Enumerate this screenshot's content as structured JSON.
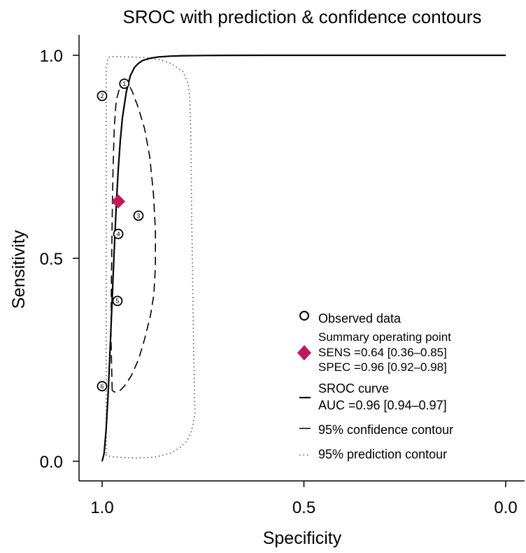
{
  "chart_data": {
    "type": "scatter",
    "title": "SROC with prediction & confidence contours",
    "xlabel": "Specificity",
    "ylabel": "Sensitivity",
    "x_reversed": true,
    "xlim": [
      1.05,
      0.0
    ],
    "ylim": [
      -0.045,
      1.05
    ],
    "xticks": [
      {
        "value": 1.0,
        "label": "1.0"
      },
      {
        "value": 0.5,
        "label": "0.5"
      },
      {
        "value": 0.0,
        "label": "0.0"
      }
    ],
    "yticks": [
      {
        "value": 0.0,
        "label": "0.0"
      },
      {
        "value": 0.5,
        "label": "0.5"
      },
      {
        "value": 1.0,
        "label": "1.0"
      }
    ],
    "grid": false,
    "legend_position": "bottom-right",
    "observed": [
      {
        "label": "1",
        "specificity": 0.945,
        "sensitivity": 0.93
      },
      {
        "label": "2",
        "specificity": 1.0,
        "sensitivity": 0.9
      },
      {
        "label": "3",
        "specificity": 0.91,
        "sensitivity": 0.605
      },
      {
        "label": "4",
        "specificity": 0.96,
        "sensitivity": 0.56
      },
      {
        "label": "5",
        "specificity": 0.962,
        "sensitivity": 0.395
      },
      {
        "label": "6",
        "specificity": 1.0,
        "sensitivity": 0.185
      }
    ],
    "summary_point": {
      "specificity": 0.96,
      "sensitivity": 0.64,
      "color": "#c2185b"
    },
    "sroc_curve": {
      "specificity": [
        1.0,
        0.995,
        0.99,
        0.985,
        0.98,
        0.975,
        0.97,
        0.965,
        0.96,
        0.955,
        0.95,
        0.94,
        0.93,
        0.92,
        0.91,
        0.9,
        0.88,
        0.86,
        0.83,
        0.8,
        0.75,
        0.7,
        0.6,
        0.5,
        0.4,
        0.3,
        0.2,
        0.1,
        0.0
      ],
      "sensitivity": [
        0.0,
        0.02,
        0.08,
        0.17,
        0.28,
        0.4,
        0.52,
        0.63,
        0.72,
        0.79,
        0.845,
        0.91,
        0.95,
        0.97,
        0.98,
        0.987,
        0.993,
        0.996,
        0.998,
        0.999,
        0.9995,
        0.9998,
        1.0,
        1.0,
        1.0,
        1.0,
        1.0,
        1.0,
        1.0
      ]
    },
    "confidence_contour": {
      "specificity": [
        0.975,
        0.978,
        0.977,
        0.975,
        0.973,
        0.97,
        0.965,
        0.955,
        0.945,
        0.935,
        0.925,
        0.91,
        0.895,
        0.882,
        0.873,
        0.868,
        0.868,
        0.872,
        0.88,
        0.895,
        0.91,
        0.928,
        0.945,
        0.958,
        0.967,
        0.972,
        0.975
      ],
      "sensitivity": [
        0.175,
        0.3,
        0.45,
        0.6,
        0.72,
        0.82,
        0.89,
        0.925,
        0.935,
        0.93,
        0.91,
        0.87,
        0.82,
        0.75,
        0.66,
        0.57,
        0.48,
        0.41,
        0.36,
        0.3,
        0.25,
        0.21,
        0.185,
        0.172,
        0.17,
        0.172,
        0.175
      ]
    },
    "prediction_contour": {
      "specificity": [
        0.99,
        0.99,
        0.99,
        0.985,
        0.97,
        0.94,
        0.9,
        0.86,
        0.83,
        0.8,
        0.787,
        0.783,
        0.78,
        0.778,
        0.775,
        0.773,
        0.77,
        0.775,
        0.78,
        0.79,
        0.805,
        0.83,
        0.87,
        0.92,
        0.96,
        0.98,
        0.99,
        0.99
      ],
      "sensitivity": [
        0.02,
        0.5,
        0.97,
        0.995,
        0.997,
        0.996,
        0.995,
        0.99,
        0.98,
        0.96,
        0.93,
        0.9,
        0.8,
        0.6,
        0.4,
        0.25,
        0.12,
        0.09,
        0.07,
        0.05,
        0.035,
        0.02,
        0.01,
        0.008,
        0.01,
        0.012,
        0.015,
        0.02
      ]
    },
    "legend": {
      "observed": "Observed data",
      "summary_title": "Summary operating point",
      "sens": "SENS =0.64 [0.36–0.85]",
      "spec": "SPEC =0.96 [0.92–0.98]",
      "sroc_title": "SROC curve",
      "auc": "AUC =0.96 [0.94–0.97]",
      "confidence": "95% confidence contour",
      "prediction": "95% prediction contour"
    }
  }
}
